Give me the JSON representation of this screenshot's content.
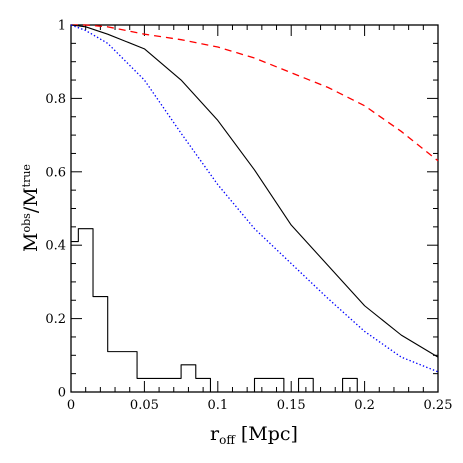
{
  "chart_data": {
    "type": "line",
    "xlabel": "r",
    "xlabel_sub": "off",
    "xlabel_unit": "[Mpc]",
    "ylabel_parts": [
      "M",
      "obs",
      "/M",
      "true"
    ],
    "xlim": [
      0,
      0.25
    ],
    "ylim": [
      0,
      1
    ],
    "x_ticks": [
      "0",
      "0.05",
      "0.1",
      "0.15",
      "0.2",
      "0.25"
    ],
    "y_ticks": [
      "0",
      "0.2",
      "0.4",
      "0.6",
      "0.8",
      "1"
    ],
    "grid": false,
    "legend": "none",
    "series": [
      {
        "style": "dashed",
        "color": "#ff0000",
        "x": [
          0,
          0.01,
          0.025,
          0.05,
          0.075,
          0.1,
          0.125,
          0.15,
          0.175,
          0.2,
          0.225,
          0.25
        ],
        "y": [
          1.0,
          1.0,
          0.995,
          0.975,
          0.96,
          0.94,
          0.91,
          0.87,
          0.83,
          0.78,
          0.71,
          0.63
        ]
      },
      {
        "style": "solid",
        "color": "#000000",
        "x": [
          0,
          0.01,
          0.025,
          0.05,
          0.075,
          0.1,
          0.125,
          0.15,
          0.175,
          0.2,
          0.225,
          0.25
        ],
        "y": [
          1.0,
          0.995,
          0.975,
          0.935,
          0.85,
          0.74,
          0.605,
          0.455,
          0.345,
          0.235,
          0.155,
          0.095
        ]
      },
      {
        "style": "dotted",
        "color": "#0000ff",
        "x": [
          0,
          0.01,
          0.025,
          0.05,
          0.075,
          0.1,
          0.125,
          0.15,
          0.175,
          0.2,
          0.225,
          0.25
        ],
        "y": [
          1.0,
          0.985,
          0.95,
          0.85,
          0.705,
          0.565,
          0.445,
          0.35,
          0.255,
          0.165,
          0.095,
          0.055
        ]
      },
      {
        "style": "step",
        "color": "#000000",
        "bin_edges": [
          0,
          0.005,
          0.015,
          0.025,
          0.035,
          0.045,
          0.055,
          0.065,
          0.075,
          0.085,
          0.095,
          0.105,
          0.115,
          0.125,
          0.135,
          0.145,
          0.155,
          0.165,
          0.175,
          0.185,
          0.195,
          0.205,
          0.215,
          0.225,
          0.235,
          0.245,
          0.25
        ],
        "counts": [
          0.41,
          0.445,
          0.26,
          0.11,
          0.11,
          0.037,
          0.037,
          0.037,
          0.074,
          0.037,
          0,
          0,
          0,
          0.037,
          0.037,
          0,
          0.037,
          0,
          0,
          0.037,
          0,
          0,
          0,
          0,
          0,
          0
        ]
      }
    ]
  }
}
